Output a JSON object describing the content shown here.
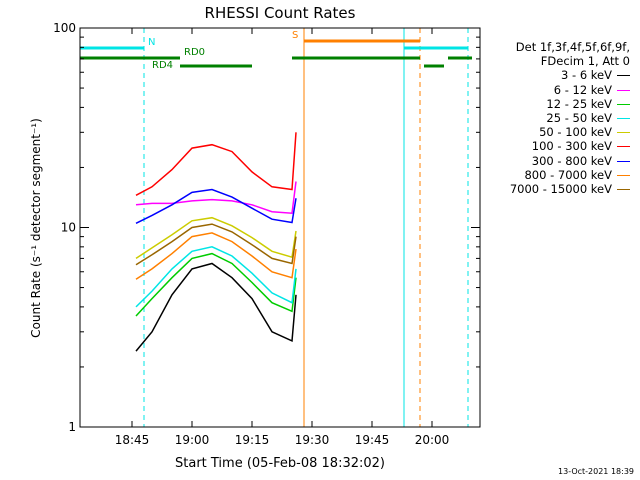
{
  "chart_data": {
    "type": "line",
    "title": "RHESSI Count Rates",
    "xlabel": "Start Time (05-Feb-08 18:32:02)",
    "ylabel": "Count Rate (s⁻¹ detector segment⁻¹)",
    "yscale": "log",
    "ylim": [
      1,
      100
    ],
    "xlim": [
      "18:32",
      "20:12"
    ],
    "x_ticks": [
      "18:45",
      "19:00",
      "19:15",
      "19:30",
      "19:45",
      "20:00"
    ],
    "y_ticks": [
      "1",
      "10",
      "100"
    ],
    "x": [
      "18:46",
      "18:50",
      "18:55",
      "19:00",
      "19:05",
      "19:10",
      "19:15",
      "19:20",
      "19:25",
      "19:26"
    ],
    "series": [
      {
        "name": "3 - 6 keV",
        "color": "#000000",
        "values": [
          2.4,
          3.0,
          4.6,
          6.2,
          6.6,
          5.6,
          4.4,
          3.0,
          2.7,
          4.6
        ]
      },
      {
        "name": "6 - 12 keV",
        "color": "#ff00ff",
        "values": [
          13.0,
          13.2,
          13.2,
          13.6,
          13.8,
          13.6,
          13.0,
          12.0,
          11.8,
          17.0
        ]
      },
      {
        "name": "12 - 25 keV",
        "color": "#00cc00",
        "values": [
          3.6,
          4.4,
          5.6,
          7.0,
          7.4,
          6.6,
          5.3,
          4.2,
          3.8,
          5.6
        ]
      },
      {
        "name": "25 - 50 keV",
        "color": "#00e5e5",
        "values": [
          4.0,
          4.8,
          6.2,
          7.6,
          8.0,
          7.2,
          5.9,
          4.7,
          4.2,
          6.2
        ]
      },
      {
        "name": "50 - 100 keV",
        "color": "#cccc00",
        "values": [
          7.0,
          7.9,
          9.2,
          10.8,
          11.2,
          10.2,
          8.9,
          7.6,
          7.1,
          9.6
        ]
      },
      {
        "name": "100 - 300 keV",
        "color": "#ff0000",
        "values": [
          14.5,
          16.0,
          19.5,
          25.0,
          26.0,
          24.0,
          19.0,
          16.0,
          15.5,
          30.0
        ]
      },
      {
        "name": "300 - 800 keV",
        "color": "#0000ff",
        "values": [
          10.5,
          11.5,
          13.0,
          15.0,
          15.5,
          14.2,
          12.5,
          11.0,
          10.6,
          14.0
        ]
      },
      {
        "name": "800 - 7000 keV",
        "color": "#ff8000",
        "values": [
          5.5,
          6.2,
          7.4,
          9.0,
          9.4,
          8.5,
          7.2,
          6.0,
          5.6,
          7.8
        ]
      },
      {
        "name": "7000 - 15000 keV",
        "color": "#996600",
        "values": [
          6.5,
          7.3,
          8.5,
          10.0,
          10.4,
          9.5,
          8.2,
          7.0,
          6.6,
          9.0
        ]
      }
    ],
    "flag_labels": {
      "night": "N",
      "saa": "S",
      "rd0": "RD0",
      "rd4": "RD4"
    },
    "vertical_markers": [
      {
        "time": "18:32",
        "color": "#00e5e5",
        "style": "solid"
      },
      {
        "time": "18:48",
        "color": "#00e5e5",
        "style": "dashed"
      },
      {
        "time": "19:28",
        "color": "#ff8000",
        "style": "solid"
      },
      {
        "time": "19:53",
        "color": "#00e5e5",
        "style": "solid"
      },
      {
        "time": "19:57",
        "color": "#ff8000",
        "style": "dashed"
      },
      {
        "time": "20:09",
        "color": "#00e5e5",
        "style": "dashed"
      }
    ],
    "flag_bars": [
      {
        "flag": "night",
        "color": "#00e5e5",
        "level": 1,
        "intervals": [
          [
            "18:32",
            "18:48"
          ],
          [
            "19:53",
            "20:09"
          ]
        ]
      },
      {
        "flag": "saa",
        "color": "#ff8000",
        "level": 2,
        "intervals": [
          [
            "19:28",
            "19:57"
          ]
        ]
      },
      {
        "flag": "rd0",
        "color": "#008000",
        "level": 0,
        "intervals": [
          [
            "18:32",
            "18:57"
          ],
          [
            "19:25",
            "19:57"
          ],
          [
            "20:04",
            "20:10"
          ]
        ]
      },
      {
        "flag": "rd4",
        "color": "#008000",
        "level": -1,
        "intervals": [
          [
            "18:57",
            "19:15"
          ],
          [
            "19:58",
            "20:03"
          ]
        ]
      }
    ]
  },
  "legend": {
    "header_line1": "Det 1f,3f,4f,5f,6f,9f,",
    "header_line2": "FDecim 1, Att 0"
  },
  "timestamp": "13-Oct-2021 18:39"
}
